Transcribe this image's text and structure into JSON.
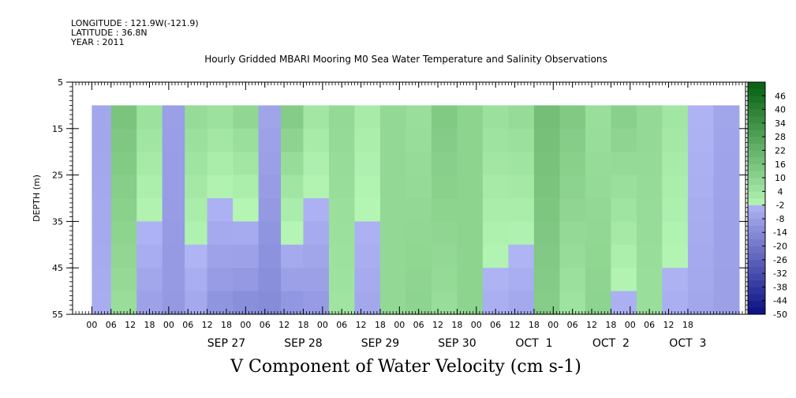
{
  "header": {
    "longitude": "LONGITUDE : 121.9W(-121.9)",
    "latitude": "LATITUDE : 36.8N",
    "year": "YEAR : 2011"
  },
  "chart_data": {
    "type": "heatmap",
    "title": "Hourly Gridded MBARI Mooring M0 Sea Water Temperature and Salinity Observations",
    "variable_label": "V Component of Water Velocity (cm s-1)",
    "ylabel": "DEPTH (m)",
    "y_ticks": [
      "5",
      "15",
      "25",
      "35",
      "45",
      "55"
    ],
    "ylim": [
      5,
      55
    ],
    "y_inverted": true,
    "data_depth_range": [
      10,
      55
    ],
    "x_hour_ticks": [
      "00",
      "06",
      "12",
      "18",
      "00",
      "06",
      "12",
      "18",
      "00",
      "06",
      "12",
      "18",
      "00",
      "06",
      "12",
      "18",
      "00",
      "06",
      "12",
      "18",
      "00",
      "06",
      "12",
      "18",
      "00",
      "06",
      "12",
      "18",
      "00",
      "06",
      "12",
      "18"
    ],
    "x_day_labels": [
      "SEP 27",
      "SEP 28",
      "SEP 29",
      "SEP 30",
      "OCT  1",
      "OCT  2",
      "OCT  3"
    ],
    "xlim_hours": [
      -36,
      174
    ],
    "data_hour_range": [
      -30,
      172
    ],
    "colorbar_levels": [
      "46",
      "40",
      "34",
      "28",
      "22",
      "16",
      "10",
      "4",
      "-2",
      "-8",
      "-14",
      "-20",
      "-26",
      "-32",
      "-38",
      "-44",
      "-50"
    ],
    "colorbar_range": [
      -50,
      52
    ],
    "colorbar_step": 3,
    "columns": [
      {
        "hour": -28,
        "near": -6,
        "deep": -4
      },
      {
        "hour": -20,
        "near": 16,
        "deep": 6
      },
      {
        "hour": -12,
        "near": 6,
        "deep": -8
      },
      {
        "hour": -4,
        "near": -8,
        "deep": -10
      },
      {
        "hour": 2,
        "near": 8,
        "deep": -6
      },
      {
        "hour": 10,
        "near": 6,
        "deep": -12
      },
      {
        "hour": 18,
        "near": 10,
        "deep": -14
      },
      {
        "hour": 26,
        "near": -6,
        "deep": -14
      },
      {
        "hour": 32,
        "near": 14,
        "deep": -12
      },
      {
        "hour": 40,
        "near": 4,
        "deep": -10
      },
      {
        "hour": 48,
        "near": 8,
        "deep": 4
      },
      {
        "hour": 56,
        "near": 2,
        "deep": -6
      },
      {
        "hour": 64,
        "near": 8,
        "deep": 8
      },
      {
        "hour": 72,
        "near": 6,
        "deep": 10
      },
      {
        "hour": 80,
        "near": 14,
        "deep": 6
      },
      {
        "hour": 88,
        "near": 10,
        "deep": 10
      },
      {
        "hour": 96,
        "near": 6,
        "deep": -4
      },
      {
        "hour": 104,
        "near": 8,
        "deep": -6
      },
      {
        "hour": 112,
        "near": 18,
        "deep": 12
      },
      {
        "hour": 120,
        "near": 14,
        "deep": 4
      },
      {
        "hour": 128,
        "near": 6,
        "deep": 10
      },
      {
        "hour": 136,
        "near": 12,
        "deep": -4
      },
      {
        "hour": 144,
        "near": 8,
        "deep": 6
      },
      {
        "hour": 152,
        "near": 4,
        "deep": -4
      },
      {
        "hour": 160,
        "near": -2,
        "deep": -6
      },
      {
        "hour": 168,
        "near": -6,
        "deep": -8
      }
    ]
  }
}
